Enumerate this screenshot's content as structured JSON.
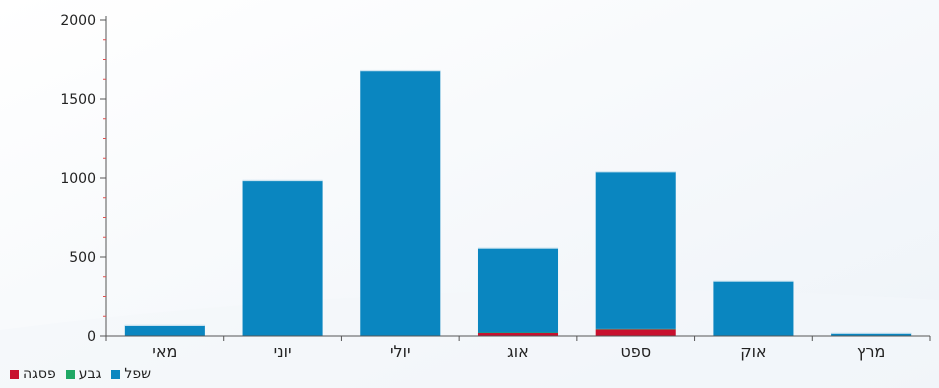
{
  "chart_data": {
    "type": "bar",
    "stacked": true,
    "categories": [
      "מאי",
      "יוני",
      "יולי",
      "אוג",
      "ספט",
      "אוק",
      "מרץ"
    ],
    "series": [
      {
        "name": "שפל",
        "color": "#0a86c0",
        "values": [
          68,
          985,
          1680,
          535,
          995,
          348,
          18
        ]
      },
      {
        "name": "גבע",
        "color": "#1fa865",
        "values": [
          0,
          0,
          0,
          2,
          3,
          0,
          0
        ]
      },
      {
        "name": "פסגה",
        "color": "#c8102e",
        "values": [
          0,
          0,
          0,
          20,
          42,
          0,
          0
        ]
      }
    ],
    "ylim": [
      0,
      2000
    ],
    "yticks": [
      0,
      500,
      1000,
      1500,
      2000
    ],
    "legend_order": [
      "פסגה",
      "גבע",
      "שפל"
    ],
    "grid": false,
    "legend_position": "bottom-left"
  }
}
